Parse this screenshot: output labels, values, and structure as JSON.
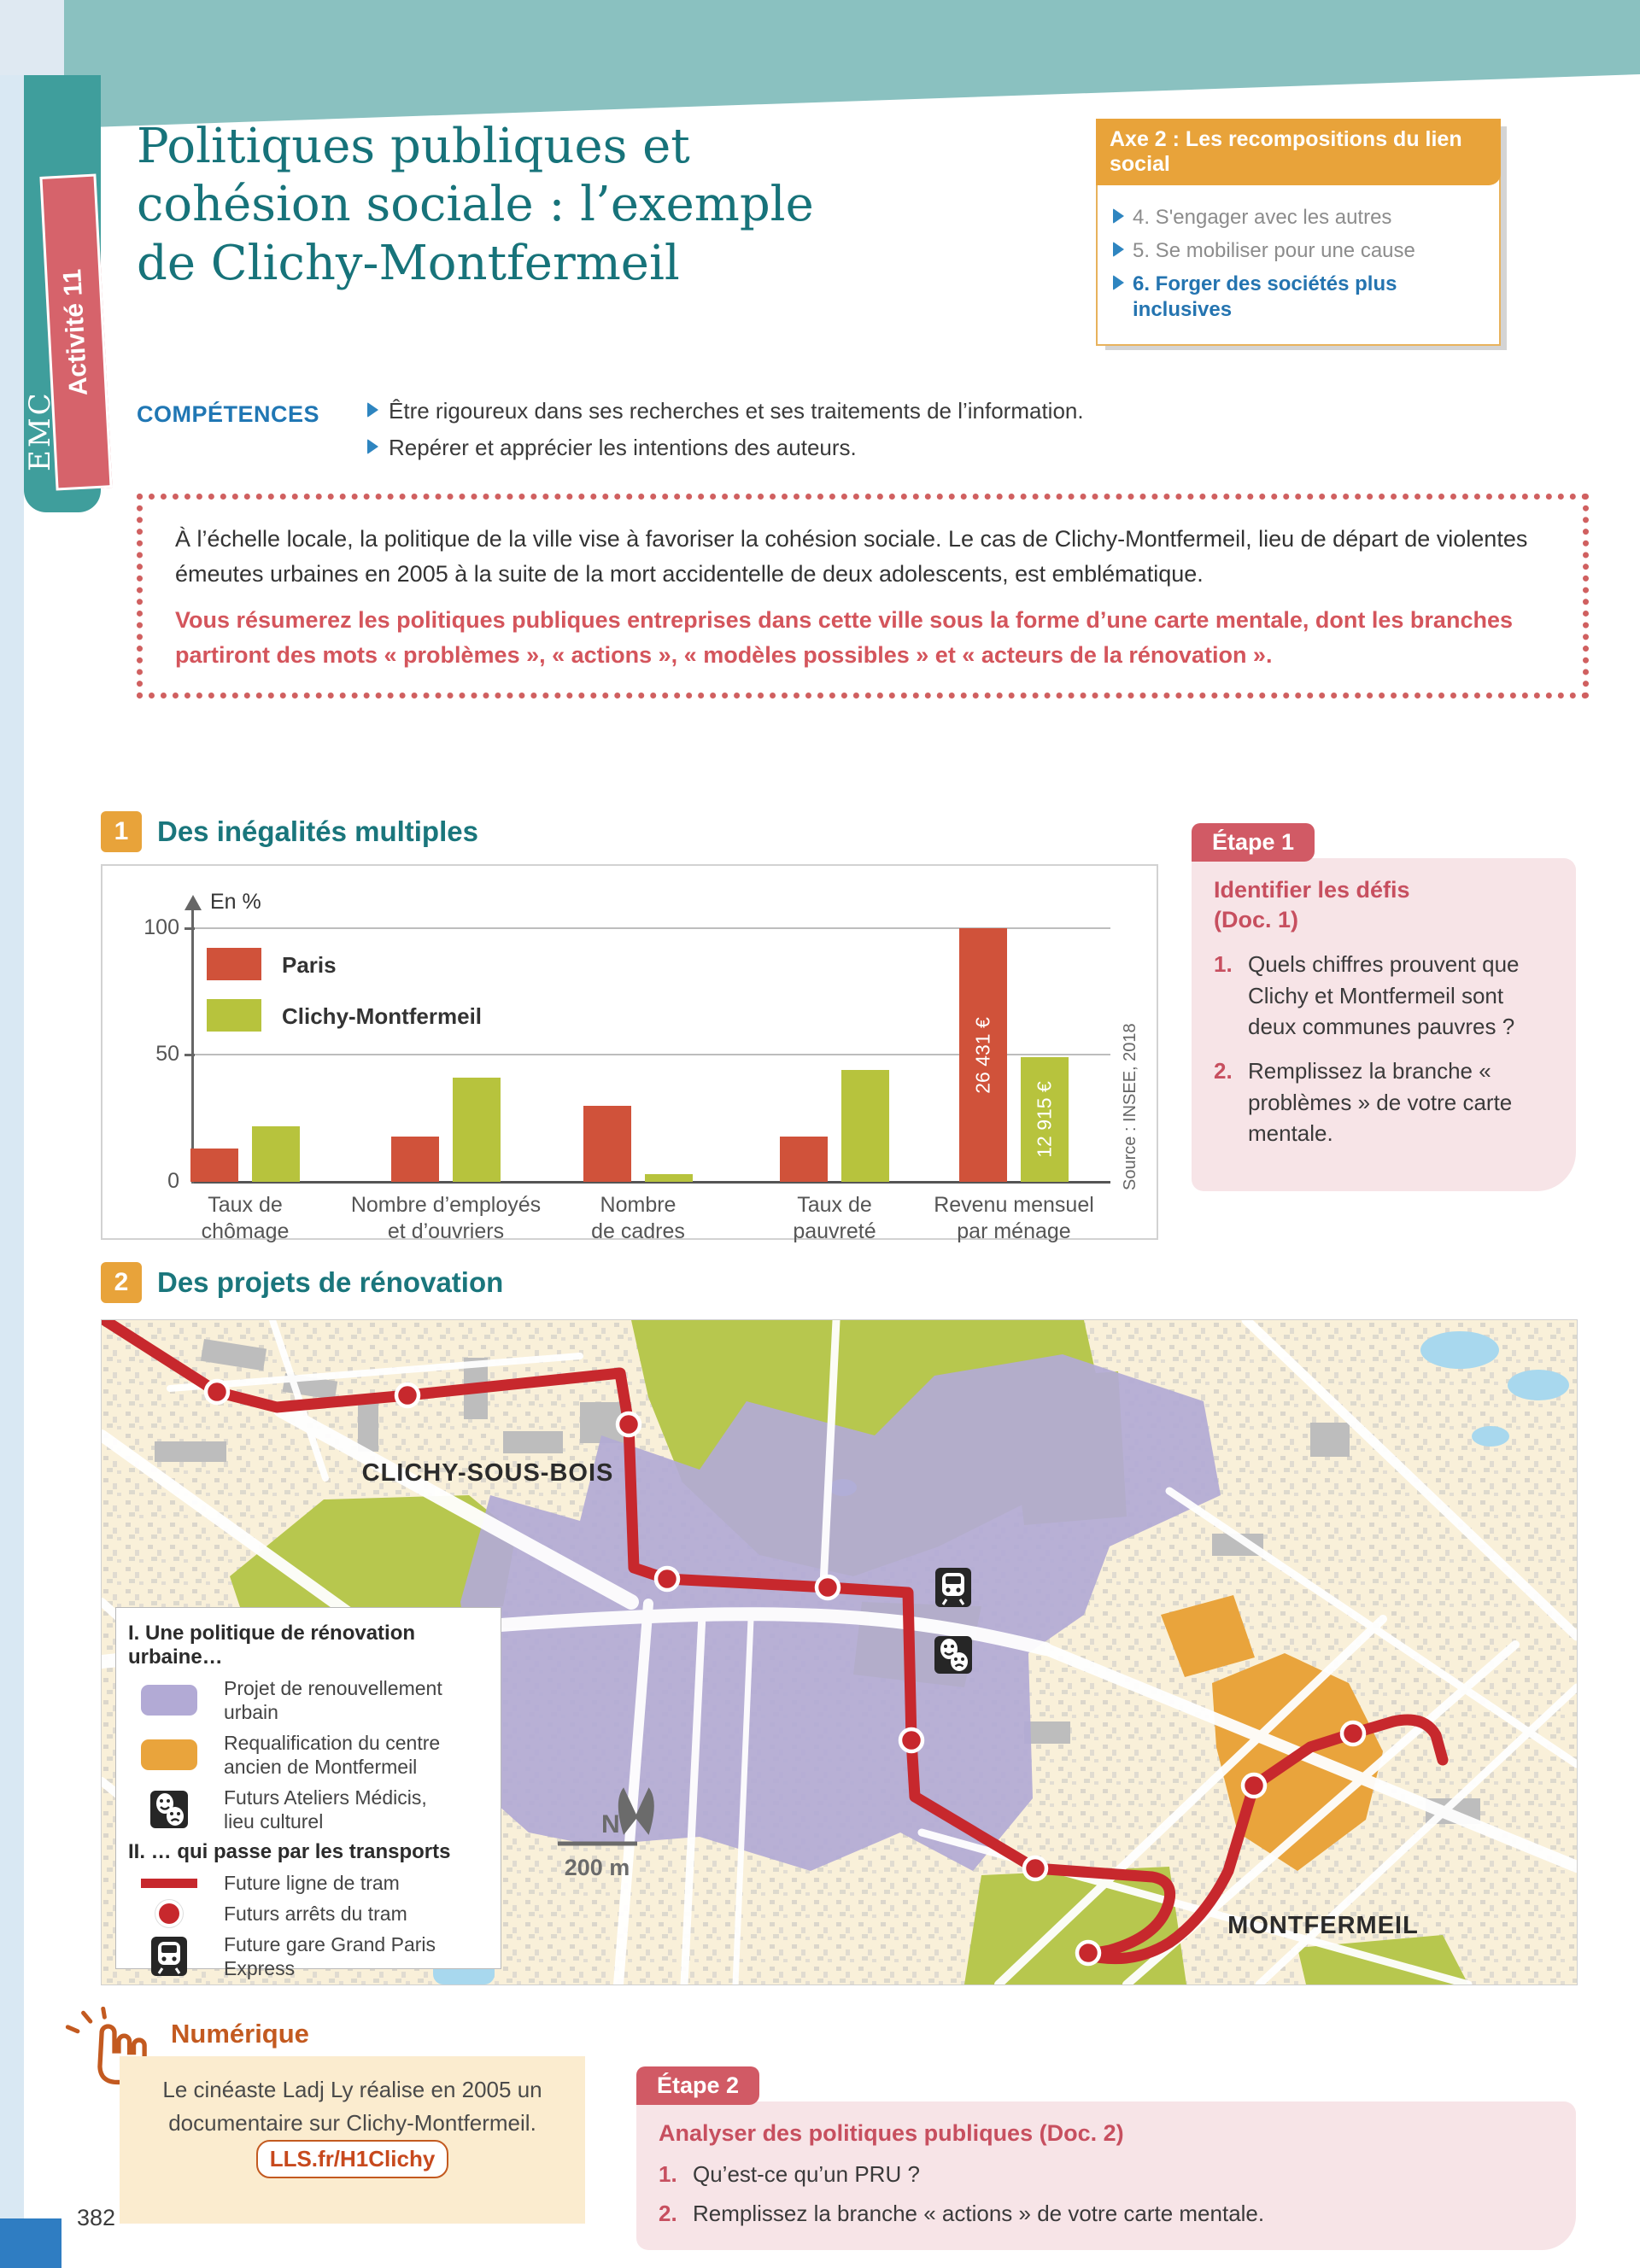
{
  "colors": {
    "banner_teal": "#8ac1c0",
    "tab_teal": "#3f9e9c",
    "title_teal": "#17737a",
    "accent_orange": "#e8a33a",
    "accent_blue": "#2474b0",
    "accent_red": "#d4555c",
    "chart_paris_red": "#d0523a",
    "chart_clichy_green": "#b7c33d",
    "map_purple": "#b2aad5",
    "map_orange": "#e9a43c",
    "tram_red": "#c7282d",
    "etape_pink": "#f7e4e7",
    "numerique_orange": "#c35a20"
  },
  "sidebar": {
    "subject": "EMC",
    "activity": "Activité 11"
  },
  "header": {
    "title": "Politiques publiques et\ncohésion sociale : l’exemple\nde Clichy-Montfermeil"
  },
  "axe_box": {
    "header": "Axe 2 : Les recompositions du lien social",
    "items": [
      {
        "text": "4. S'engager avec les autres"
      },
      {
        "text": "5. Se mobiliser pour une cause"
      },
      {
        "text": "6. Forger des sociétés plus inclusives"
      }
    ]
  },
  "competences": {
    "label": "COMPÉTENCES",
    "items": [
      "Être rigoureux dans ses recherches et ses traitements de l’information.",
      "Repérer et apprécier les intentions des auteurs."
    ]
  },
  "intro_box": {
    "paragraph": "À l’échelle locale, la politique de la ville vise à favoriser la cohésion sociale. Le cas de Clichy-Montfermeil, lieu de départ de violentes émeutes urbaines en 2005 à la suite de la mort accidentelle de deux adolescents, est emblématique.",
    "task": "Vous résumerez les politiques publiques entreprises dans cette ville sous la forme d’une carte mentale, dont les branches partiront des mots « problèmes », « actions », « modèles possibles » et « acteurs de la rénovation »."
  },
  "doc1": {
    "number": "1",
    "title": "Des inégalités multiples"
  },
  "chart_data": {
    "type": "bar",
    "title": "Des inégalités multiples",
    "unit_label": "En %",
    "ylabel": "En %",
    "ylim": [
      0,
      100
    ],
    "yticks": [
      0,
      50,
      100
    ],
    "grid": "horizontal at 50 and 100",
    "legend_position": "top-left",
    "categories": [
      "Taux de\nchômage",
      "Nombre d’employés\net d’ouvriers",
      "Nombre\nde cadres",
      "Taux de\npauvreté",
      "Revenu mensuel\npar ménage"
    ],
    "series": [
      {
        "name": "Paris",
        "color": "#d0523a",
        "values": [
          13,
          18,
          30,
          18,
          100
        ],
        "bar_labels": [
          "",
          "",
          "",
          "",
          "26 431 €"
        ]
      },
      {
        "name": "Clichy-Montfermeil",
        "color": "#b7c33d",
        "values": [
          22,
          41,
          3,
          44,
          49
        ],
        "bar_labels": [
          "",
          "",
          "",
          "",
          "12 915 €"
        ]
      }
    ],
    "source": "Source : INSEE, 2018"
  },
  "etape1": {
    "tab": "Étape 1",
    "title": "Identifier les défis\n(Doc. 1)",
    "items": [
      {
        "num": "1.",
        "text": "Quels chiffres prouvent que Clichy et Montfermeil sont deux communes pauvres ?"
      },
      {
        "num": "2.",
        "text": "Remplissez la branche « problèmes » de votre carte mentale."
      }
    ]
  },
  "doc2": {
    "number": "2",
    "title": "Des projets de rénovation"
  },
  "map": {
    "city_labels": {
      "clichy": "CLICHY-SOUS-BOIS",
      "montfermeil": "MONTFERMEIL"
    },
    "north": "N",
    "scale": "200 m",
    "legend": {
      "section1_title": "I. Une politique de rénovation urbaine…",
      "section2_title": "II. … qui passe par les transports",
      "items": [
        {
          "label": "Projet de renouvellement urbain"
        },
        {
          "label": "Requalification du centre\nancien de Montfermeil"
        },
        {
          "label": "Futurs Ateliers Médicis,\nlieu culturel"
        },
        {
          "label": "Future ligne de tram"
        },
        {
          "label": "Futurs arrêts du tram"
        },
        {
          "label": "Future gare Grand Paris Express"
        }
      ]
    }
  },
  "numerique": {
    "title": "Numérique",
    "text": "Le cinéaste Ladj Ly réalise en 2005 un documentaire sur Clichy-Montfermeil. ",
    "link": "LLS.fr/H1Clichy"
  },
  "etape2": {
    "tab": "Étape 2",
    "title": "Analyser des politiques publiques (Doc. 2)",
    "items": [
      {
        "num": "1.",
        "text": "Qu’est-ce qu’un PRU ?"
      },
      {
        "num": "2.",
        "text": "Remplissez la branche « actions » de votre carte mentale."
      }
    ]
  },
  "page": {
    "number": "382"
  }
}
